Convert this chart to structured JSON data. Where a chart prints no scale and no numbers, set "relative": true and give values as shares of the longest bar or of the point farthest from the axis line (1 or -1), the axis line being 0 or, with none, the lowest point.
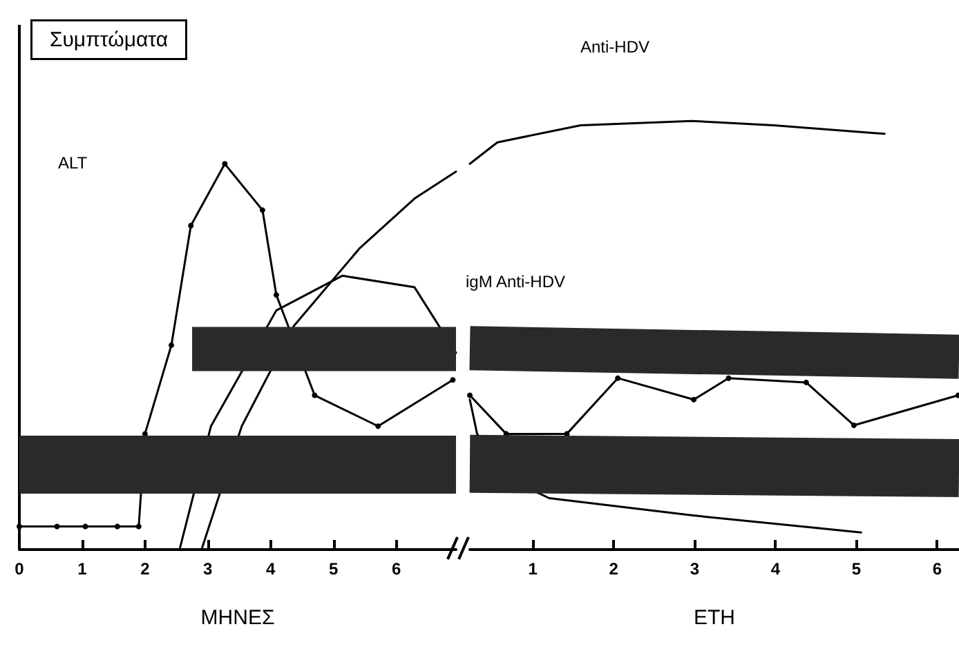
{
  "chart_data": [
    {
      "type": "line",
      "relative": true,
      "xlabel": "ΜΗΝΕΣ",
      "xlim": [
        0,
        6.95
      ],
      "xticks": [
        0,
        1,
        2,
        3,
        4,
        5,
        6
      ],
      "grid": false,
      "marker": "none",
      "series": [
        {
          "color": "#000000",
          "marker": "circle",
          "x": [
            0,
            0.6,
            1.05,
            1.56,
            1.9,
            2.0,
            2.42,
            2.73,
            3.27,
            3.87,
            4.09,
            4.7,
            5.71,
            6.9
          ],
          "values": [
            0.06,
            0.06,
            0.06,
            0.06,
            0.06,
            0.3,
            0.53,
            0.84,
            1,
            0.88,
            0.66,
            0.4,
            0.32,
            0.44
          ]
        },
        {
          "color": "#000000",
          "x": [
            2.9,
            3.54,
            4.37,
            5.41,
            6.29,
            6.95
          ],
          "values": [
            0,
            0.32,
            0.58,
            0.78,
            0.91,
            0.98
          ]
        },
        {
          "color": "#000000",
          "x": [
            2.55,
            3.05,
            4.09,
            5.14,
            6.29,
            6.95
          ],
          "values": [
            0,
            0.32,
            0.62,
            0.71,
            0.68,
            0.51
          ]
        },
        {
          "color": "#2a2a2a",
          "x": [
            2.75,
            6.95
          ],
          "values": [
            0.52,
            0.52
          ]
        },
        {
          "color": "#2a2a2a",
          "x": [
            0,
            6.95
          ],
          "values": [
            0.22,
            0.22
          ]
        }
      ],
      "annotations": [
        "Συμπτώματα",
        "ALT"
      ]
    },
    {
      "type": "line",
      "relative": true,
      "xlabel": "ΕΤΗ",
      "xlim": [
        0.22,
        6.27
      ],
      "xticks": [
        1,
        2,
        3,
        4,
        5,
        6
      ],
      "grid": false,
      "marker": "none",
      "series": [
        {
          "color": "#000000",
          "marker": "circle",
          "x": [
            0.22,
            0.67,
            1.42,
            2.05,
            2.99,
            3.42,
            4.38,
            4.97,
            6.26
          ],
          "values": [
            0.36,
            0.27,
            0.27,
            0.4,
            0.35,
            0.4,
            0.39,
            0.29,
            0.36
          ]
        },
        {
          "color": "#000000",
          "x": [
            0.22,
            0.56,
            1.59,
            2.96,
            3.98,
            5.35
          ],
          "values": [
            0.9,
            0.95,
            0.99,
            1.0,
            0.99,
            0.97
          ]
        },
        {
          "color": "#000000",
          "x": [
            0.22,
            0.31,
            0.65,
            1.2,
            2.96,
            5.06
          ],
          "values": [
            0.35,
            0.27,
            0.17,
            0.12,
            0.08,
            0.04
          ]
        },
        {
          "color": "#2a2a2a",
          "x": [
            0.22,
            6.27
          ],
          "values": [
            0.47,
            0.45
          ]
        },
        {
          "color": "#2a2a2a",
          "x": [
            0.22,
            6.27
          ],
          "values": [
            0.2,
            0.19
          ]
        }
      ],
      "annotations": [
        "Anti-HDV",
        "igM Anti-HDV"
      ]
    }
  ]
}
